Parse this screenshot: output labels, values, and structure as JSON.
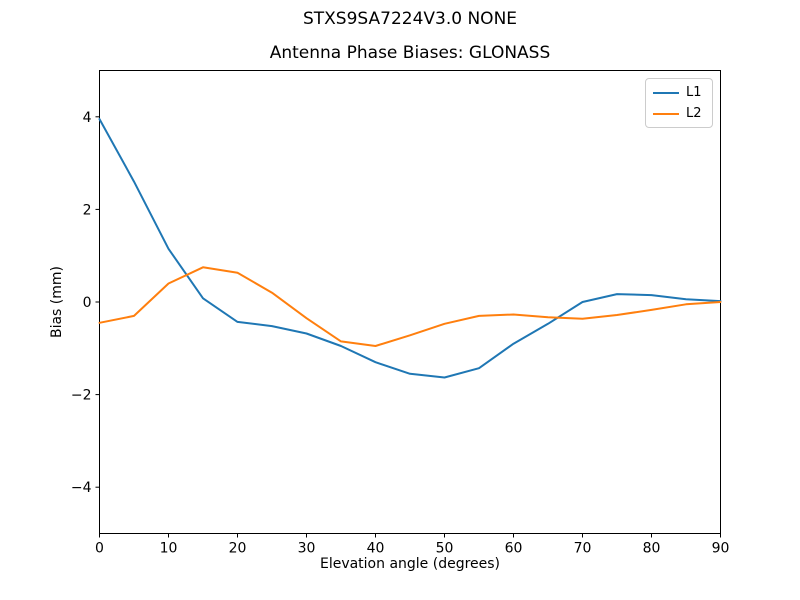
{
  "chart_data": {
    "type": "line",
    "suptitle": "STXS9SA7224V3.0 NONE",
    "title": "Antenna Phase Biases: GLONASS",
    "xlabel": "Elevation angle (degrees)",
    "ylabel": "Bias (mm)",
    "xlim": [
      0,
      90
    ],
    "ylim": [
      -5,
      5
    ],
    "xticks": [
      0,
      10,
      20,
      30,
      40,
      50,
      60,
      70,
      80,
      90
    ],
    "yticks": [
      -4,
      -2,
      0,
      2,
      4
    ],
    "grid": false,
    "legend_position": "upper right",
    "x": [
      0,
      5,
      10,
      15,
      20,
      25,
      30,
      35,
      40,
      45,
      50,
      55,
      60,
      65,
      70,
      75,
      80,
      85,
      90
    ],
    "series": [
      {
        "name": "L1",
        "color": "#1f77b4",
        "values": [
          3.95,
          2.6,
          1.15,
          0.08,
          -0.43,
          -0.52,
          -0.68,
          -0.95,
          -1.3,
          -1.55,
          -1.63,
          -1.43,
          -0.9,
          -0.47,
          0.0,
          0.17,
          0.15,
          0.06,
          0.02
        ]
      },
      {
        "name": "L2",
        "color": "#ff7f0e",
        "values": [
          -0.45,
          -0.3,
          0.4,
          0.75,
          0.63,
          0.2,
          -0.35,
          -0.85,
          -0.95,
          -0.72,
          -0.47,
          -0.3,
          -0.27,
          -0.33,
          -0.36,
          -0.28,
          -0.17,
          -0.05,
          0.0
        ]
      }
    ]
  }
}
